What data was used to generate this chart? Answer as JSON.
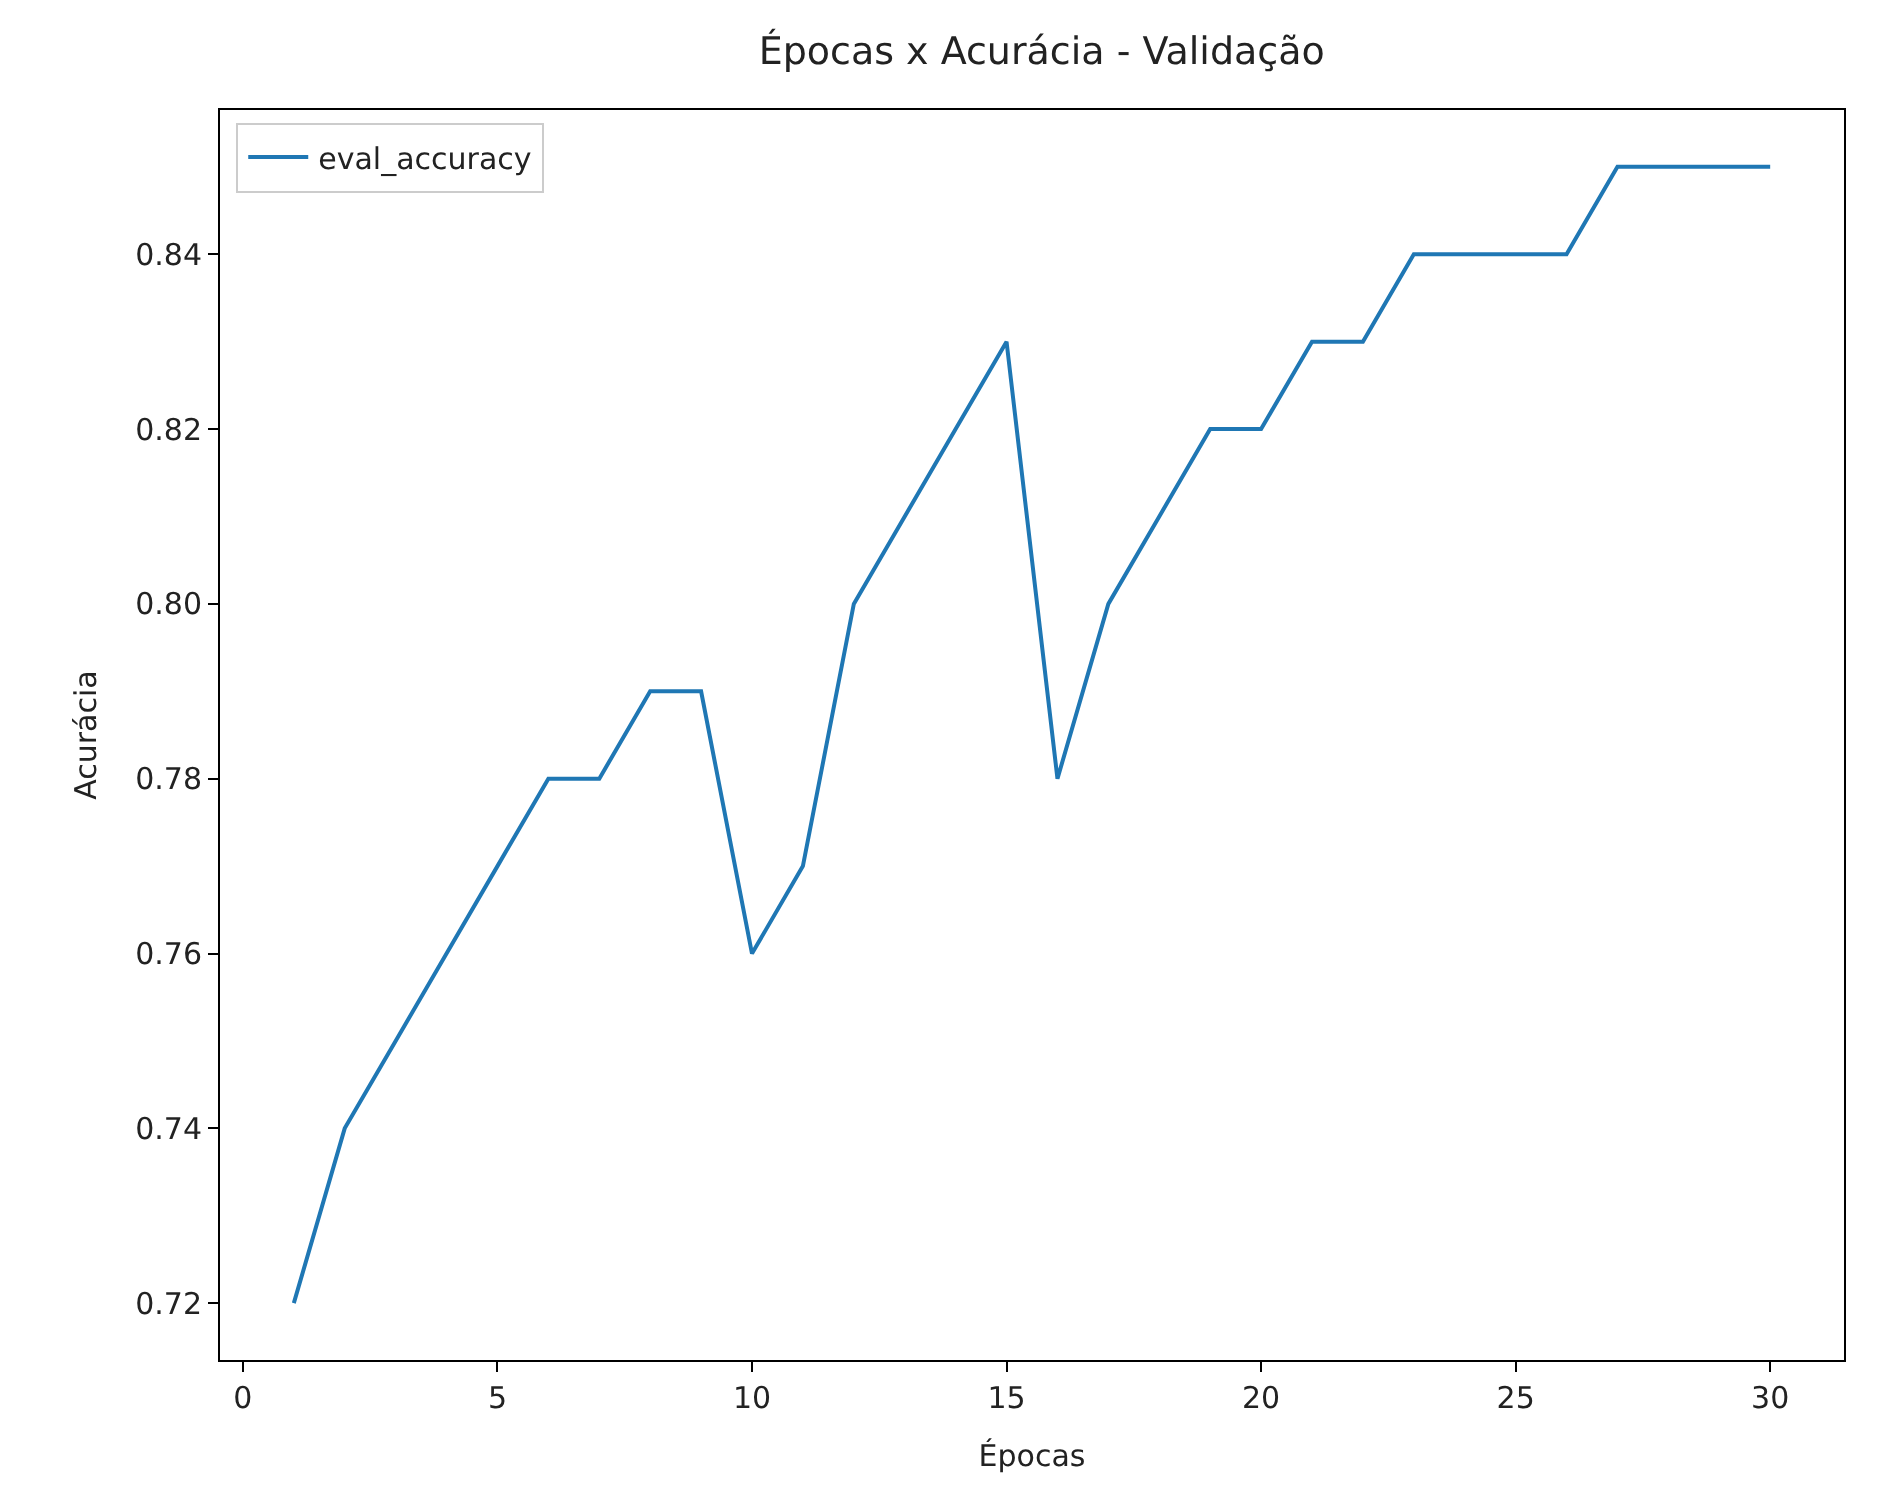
{
  "chart_data": {
    "type": "line",
    "title": "Épocas x Acurácia - Validação",
    "xlabel": "Épocas",
    "ylabel": "Acurácia",
    "x": [
      1,
      2,
      3,
      4,
      5,
      6,
      7,
      8,
      9,
      10,
      11,
      12,
      13,
      14,
      15,
      16,
      17,
      18,
      19,
      20,
      21,
      22,
      23,
      24,
      25,
      26,
      27,
      28,
      29,
      30
    ],
    "series": [
      {
        "name": "eval_accuracy",
        "color": "#1f77b4",
        "values": [
          0.72,
          0.74,
          0.75,
          0.76,
          0.77,
          0.78,
          0.78,
          0.79,
          0.79,
          0.76,
          0.77,
          0.8,
          0.81,
          0.82,
          0.83,
          0.78,
          0.8,
          0.81,
          0.82,
          0.82,
          0.83,
          0.83,
          0.84,
          0.84,
          0.84,
          0.84,
          0.85,
          0.85,
          0.85,
          0.85
        ]
      }
    ],
    "xlim": [
      -0.45,
      31.45
    ],
    "xticks": [
      0,
      5,
      10,
      15,
      20,
      25,
      30
    ],
    "ylim": [
      0.7135,
      0.8565
    ],
    "yticks": [
      {
        "value": 0.72,
        "label": "0.72"
      },
      {
        "value": 0.74,
        "label": "0.74"
      },
      {
        "value": 0.76,
        "label": "0.76"
      },
      {
        "value": 0.78,
        "label": "0.78"
      },
      {
        "value": 0.8,
        "label": "0.80"
      },
      {
        "value": 0.82,
        "label": "0.82"
      },
      {
        "value": 0.84,
        "label": "0.84"
      }
    ],
    "legend": "top left",
    "marker": "none",
    "line_style": "solid"
  }
}
